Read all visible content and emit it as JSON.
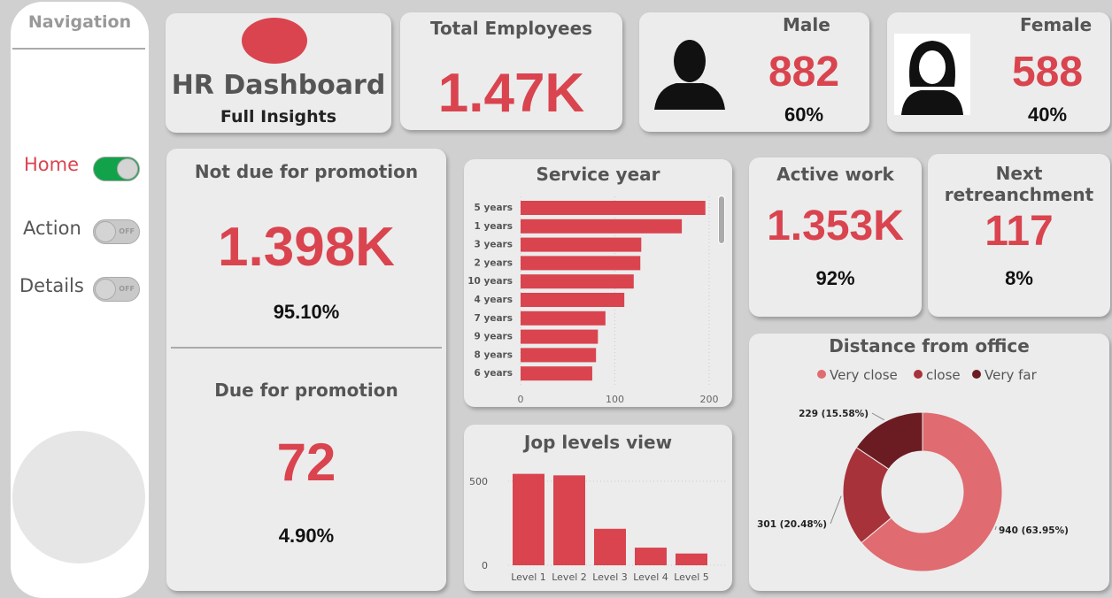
{
  "nav": {
    "title": "Navigation",
    "items": [
      {
        "label": "Home",
        "on": true
      },
      {
        "label": "Action",
        "on": false,
        "toggle": "OFF"
      },
      {
        "label": "Details",
        "on": false,
        "toggle": "OFF"
      }
    ]
  },
  "header": {
    "title": "HR Dashboard",
    "subtitle": "Full Insights"
  },
  "total": {
    "label": "Total Employees",
    "value": "1.47K"
  },
  "male": {
    "label": "Male",
    "value": "882",
    "pct": "60%"
  },
  "female": {
    "label": "Female",
    "value": "588",
    "pct": "40%"
  },
  "promo": {
    "not_label": "Not due for promotion",
    "not_value": "1.398K",
    "not_pct": "95.10%",
    "due_label": "Due for promotion",
    "due_value": "72",
    "due_pct": "4.90%"
  },
  "active": {
    "label": "Active work",
    "value": "1.353K",
    "pct": "92%"
  },
  "retrench": {
    "label": "Next retreanchment",
    "value": "117",
    "pct": "8%"
  },
  "colors": {
    "accent": "#d9444f",
    "toggle_on": "#12a34a"
  },
  "chart_data": [
    {
      "type": "bar",
      "orientation": "horizontal",
      "title": "Service year",
      "categories": [
        "5 years",
        "1 years",
        "3 years",
        "2 years",
        "10 years",
        "4 years",
        "7 years",
        "9 years",
        "8 years",
        "6 years"
      ],
      "values": [
        196,
        171,
        128,
        127,
        120,
        110,
        90,
        82,
        80,
        76
      ],
      "xlim": [
        0,
        200
      ],
      "xticks": [
        0,
        100,
        200
      ],
      "color": "#d9444f"
    },
    {
      "type": "bar",
      "title": "Jop levels view",
      "categories": [
        "Level 1",
        "Level 2",
        "Level 3",
        "Level 4",
        "Level 5"
      ],
      "values": [
        544,
        535,
        217,
        105,
        70
      ],
      "ylim": [
        0,
        560
      ],
      "yticks": [
        0,
        500
      ],
      "color": "#d9444f"
    },
    {
      "type": "pie",
      "donut": true,
      "title": "Distance from office",
      "legend": "top",
      "series": [
        {
          "name": "Very close",
          "value": 940,
          "label": "940 (63.95%)",
          "color": "#e06b70"
        },
        {
          "name": "close",
          "value": 301,
          "label": "301 (20.48%)",
          "color": "#a8323a"
        },
        {
          "name": "Very far",
          "value": 229,
          "label": "229 (15.58%)",
          "color": "#6b1c22"
        }
      ]
    }
  ]
}
